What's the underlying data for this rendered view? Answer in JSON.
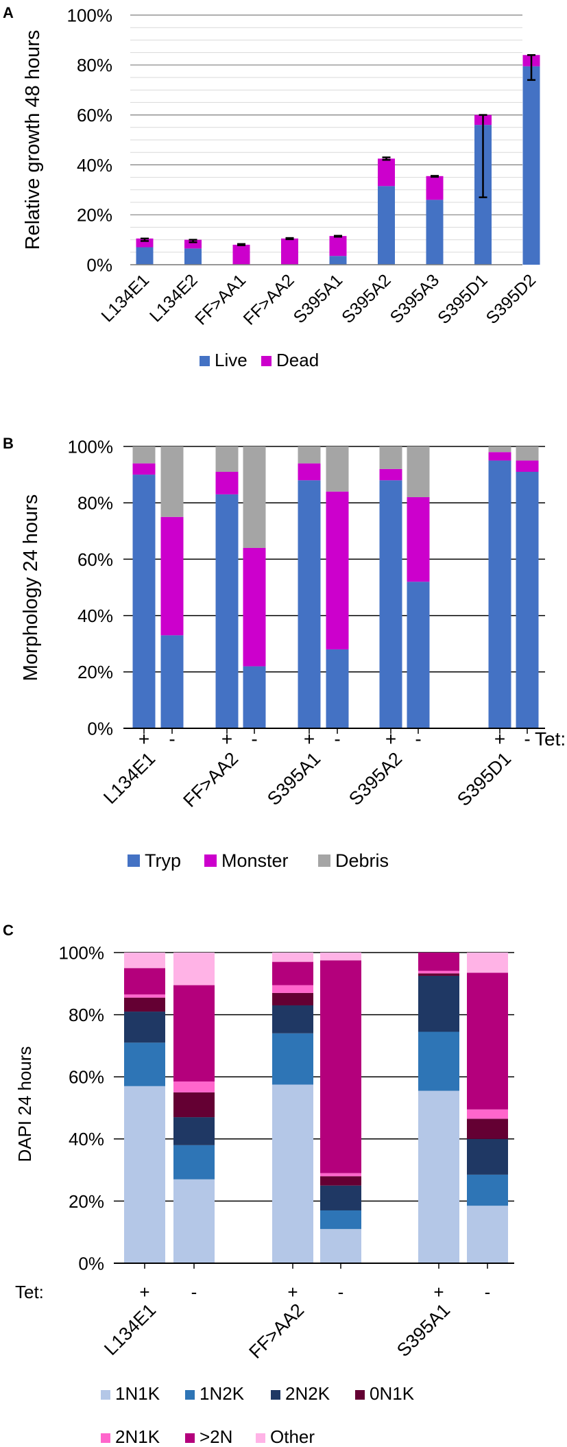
{
  "chart_data": [
    {
      "panel": "A",
      "type": "bar",
      "stacked": true,
      "ylabel": "Relative growth 48 hours",
      "yticks": [
        "0%",
        "20%",
        "40%",
        "60%",
        "80%",
        "100%"
      ],
      "ylim": [
        0,
        100
      ],
      "categories": [
        "L134E1",
        "L134E2",
        "FF>AA1",
        "FF>AA2",
        "S395A1",
        "S395A2",
        "S395A3",
        "S395D1",
        "S395D2"
      ],
      "series": [
        {
          "name": "Live",
          "color": "#4472c4",
          "values": [
            7,
            6.5,
            0,
            0,
            3.5,
            31.5,
            26,
            56,
            79.5
          ]
        },
        {
          "name": "Dead",
          "color": "#cc00cc",
          "values": [
            3.5,
            3.5,
            8,
            10.5,
            8,
            11,
            9.5,
            4,
            4.5
          ]
        }
      ],
      "error_bars": [
        {
          "low": 9.5,
          "high": 10.5
        },
        {
          "low": 9,
          "high": 10
        },
        {
          "low": 7.8,
          "high": 8.3
        },
        {
          "low": 10.2,
          "high": 10.7
        },
        {
          "low": 11.2,
          "high": 11.6
        },
        {
          "low": 42,
          "high": 43
        },
        {
          "low": 35.2,
          "high": 35.6
        },
        {
          "low": 27,
          "high": 60
        },
        {
          "low": 74,
          "high": 84
        }
      ],
      "legend": [
        "Live",
        "Dead"
      ]
    },
    {
      "panel": "B",
      "type": "bar",
      "stacked": true,
      "ylabel": "Morphology 24 hours",
      "yticks": [
        "0%",
        "20%",
        "40%",
        "60%",
        "80%",
        "100%"
      ],
      "ylim": [
        0,
        100
      ],
      "groups": [
        "L134E1",
        "FF>AA2",
        "S395A1",
        "S395A2",
        "S395D1"
      ],
      "conditions": [
        "+",
        "-"
      ],
      "condition_axis_label": "Tet:",
      "series": [
        {
          "name": "Tryp",
          "color": "#4472c4",
          "values": [
            90,
            33,
            83,
            22,
            88,
            28,
            88,
            52,
            95,
            91
          ]
        },
        {
          "name": "Monster",
          "color": "#cc00cc",
          "values": [
            4,
            42,
            8,
            42,
            6,
            56,
            4,
            30,
            3,
            4
          ]
        },
        {
          "name": "Debris",
          "color": "#a5a5a5",
          "values": [
            6,
            25,
            9,
            36,
            6,
            16,
            8,
            18,
            2,
            5
          ]
        }
      ],
      "legend": [
        "Tryp",
        "Monster",
        "Debris"
      ]
    },
    {
      "panel": "C",
      "type": "bar",
      "stacked": true,
      "ylabel": "DAPI 24 hours",
      "yticks": [
        "0%",
        "20%",
        "40%",
        "60%",
        "80%",
        "100%"
      ],
      "ylim": [
        0,
        100
      ],
      "groups": [
        "L134E1",
        "FF>AA2",
        "S395A1"
      ],
      "conditions": [
        "+",
        "-"
      ],
      "condition_axis_label": "Tet:",
      "series": [
        {
          "name": "1N1K",
          "color": "#b4c7e7",
          "values": [
            57,
            27,
            57.5,
            11,
            55.5,
            18.5
          ]
        },
        {
          "name": "1N2K",
          "color": "#2e75b6",
          "values": [
            14,
            11,
            16.5,
            6,
            19,
            10
          ]
        },
        {
          "name": "2N2K",
          "color": "#1f3864",
          "values": [
            10,
            9,
            9,
            8,
            18,
            11.5
          ]
        },
        {
          "name": "0N1K",
          "color": "#640033",
          "values": [
            4.5,
            8,
            4,
            3,
            0.8,
            6.5
          ]
        },
        {
          "name": "2N1K",
          "color": "#ff66cc",
          "values": [
            1,
            3.5,
            2.5,
            1,
            0.8,
            3
          ]
        },
        {
          "name": ">2N",
          "color": "#b4007c",
          "values": [
            8.5,
            31,
            7.5,
            68.5,
            5.9,
            44
          ]
        },
        {
          "name": "Other",
          "color": "#ffb3e6",
          "values": [
            5,
            10.5,
            3,
            2.5,
            0,
            6.5
          ]
        }
      ],
      "legend": [
        "1N1K",
        "1N2K",
        "2N2K",
        "0N1K",
        "2N1K",
        ">2N",
        "Other"
      ]
    }
  ]
}
